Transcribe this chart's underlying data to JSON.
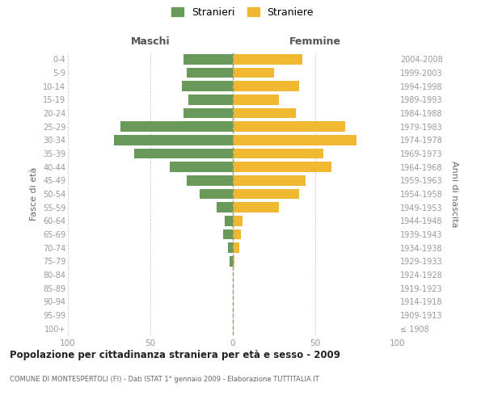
{
  "age_groups": [
    "100+",
    "95-99",
    "90-94",
    "85-89",
    "80-84",
    "75-79",
    "70-74",
    "65-69",
    "60-64",
    "55-59",
    "50-54",
    "45-49",
    "40-44",
    "35-39",
    "30-34",
    "25-29",
    "20-24",
    "15-19",
    "10-14",
    "5-9",
    "0-4"
  ],
  "birth_years": [
    "≤ 1908",
    "1909-1913",
    "1914-1918",
    "1919-1923",
    "1924-1928",
    "1929-1933",
    "1934-1938",
    "1939-1943",
    "1944-1948",
    "1949-1953",
    "1954-1958",
    "1959-1963",
    "1964-1968",
    "1969-1973",
    "1974-1978",
    "1979-1983",
    "1984-1988",
    "1989-1993",
    "1994-1998",
    "1999-2003",
    "2004-2008"
  ],
  "maschi": [
    0,
    0,
    0,
    0,
    0,
    2,
    3,
    6,
    5,
    10,
    20,
    28,
    38,
    60,
    72,
    68,
    30,
    27,
    31,
    28,
    30
  ],
  "femmine": [
    0,
    0,
    0,
    0,
    0,
    1,
    4,
    5,
    6,
    28,
    40,
    44,
    60,
    55,
    75,
    68,
    38,
    28,
    40,
    25,
    42
  ],
  "maschi_color": "#6a9a5a",
  "femmine_color": "#f0b830",
  "grid_color": "#cccccc",
  "title": "Popolazione per cittadinanza straniera per età e sesso - 2009",
  "subtitle": "COMUNE DI MONTESPERTOLI (FI) - Dati ISTAT 1° gennaio 2009 - Elaborazione TUTTITALIA.IT",
  "ylabel_left": "Fasce di età",
  "ylabel_right": "Anni di nascita",
  "header_left": "Maschi",
  "header_right": "Femmine",
  "legend_stranieri": "Stranieri",
  "legend_straniere": "Straniere",
  "xlim": 100
}
